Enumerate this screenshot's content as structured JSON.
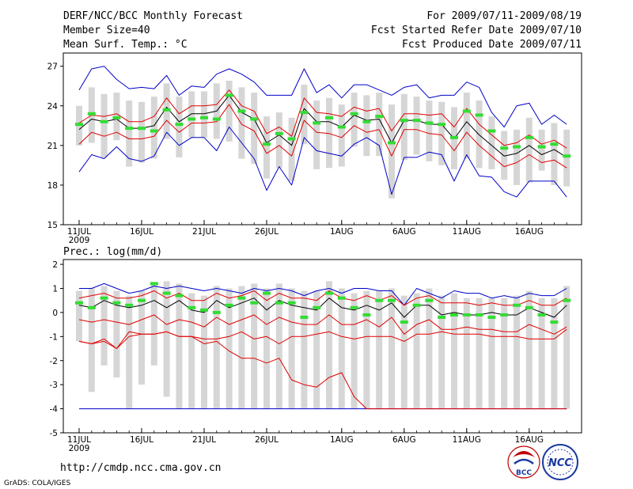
{
  "header": {
    "title": "DERF/NCC/BCC Monthly Forecast",
    "member_size": "Member Size=40",
    "variable": "Mean Surf. Temp.: °C",
    "period": "For 2009/07/11-2009/08/19",
    "started": "Fcst Started Refer Date 2009/07/10",
    "produced": "Fcst Produced Date 2009/07/11"
  },
  "footer": {
    "url": "http://cmdp.ncc.cma.gov.cn",
    "credit": "GrADS: COLA/IGES",
    "logo_bcc": "BCC",
    "logo_ncc": "NCC"
  },
  "colors": {
    "box": "#d6d6d6",
    "mean": "#000000",
    "inner": "#e00000",
    "outer": "#0000c8",
    "obs": "#33dd33"
  },
  "chart_data": [
    {
      "type": "line",
      "title": "Mean Surf. Temp.: °C",
      "xlabel": "",
      "ylabel": "",
      "ylim": [
        15,
        28
      ],
      "yticks": [
        15,
        18,
        21,
        24,
        27
      ],
      "x_ticks": [
        {
          "day": 0,
          "label": "11JUL"
        },
        {
          "day": 5,
          "label": "16JUL"
        },
        {
          "day": 10,
          "label": "21JUL"
        },
        {
          "day": 15,
          "label": "26JUL"
        },
        {
          "day": 21,
          "label": "1AUG"
        },
        {
          "day": 26,
          "label": "6AUG"
        },
        {
          "day": 31,
          "label": "11AUG"
        },
        {
          "day": 36,
          "label": "16AUG"
        }
      ],
      "year_label": "2009",
      "series": [
        {
          "name": "mean",
          "values": [
            22.2,
            23.0,
            22.8,
            23.0,
            22.3,
            22.3,
            22.5,
            23.9,
            22.8,
            23.4,
            23.4,
            23.6,
            24.8,
            23.5,
            23.0,
            21.2,
            21.8,
            21.0,
            23.8,
            22.8,
            22.8,
            22.4,
            23.3,
            22.9,
            23.0,
            21.2,
            22.9,
            22.9,
            22.6,
            22.6,
            21.5,
            22.8,
            21.8,
            21.0,
            20.2,
            20.4,
            21.0,
            20.3,
            20.7,
            20.1
          ]
        },
        {
          "name": "upper_inner",
          "values": [
            22.7,
            23.3,
            23.2,
            23.4,
            22.8,
            22.8,
            23.2,
            24.6,
            23.4,
            24.0,
            24.0,
            24.1,
            25.2,
            24.0,
            23.6,
            21.9,
            22.4,
            21.7,
            24.6,
            23.5,
            23.4,
            23.2,
            23.9,
            23.6,
            23.8,
            22.1,
            23.4,
            23.4,
            23.3,
            23.4,
            22.4,
            23.8,
            22.6,
            21.8,
            21.0,
            21.2,
            21.8,
            21.1,
            21.4,
            20.8
          ]
        },
        {
          "name": "lower_inner",
          "values": [
            21.1,
            22.0,
            21.7,
            22.0,
            21.5,
            21.5,
            21.7,
            22.9,
            22.0,
            22.7,
            22.7,
            22.8,
            24.1,
            22.6,
            22.1,
            20.4,
            21.0,
            20.2,
            22.9,
            22.0,
            21.9,
            21.6,
            22.5,
            22.0,
            22.2,
            20.2,
            22.2,
            22.2,
            21.9,
            21.8,
            20.6,
            22.0,
            21.0,
            20.2,
            19.4,
            19.7,
            20.3,
            19.7,
            19.9,
            19.3
          ]
        },
        {
          "name": "upper_outer",
          "values": [
            25.2,
            26.8,
            27.0,
            26.0,
            25.3,
            25.4,
            25.3,
            26.3,
            24.8,
            25.5,
            25.4,
            26.4,
            26.8,
            26.4,
            25.8,
            24.8,
            24.8,
            24.8,
            26.8,
            25.0,
            25.6,
            24.6,
            25.6,
            25.6,
            25.2,
            24.8,
            25.4,
            25.6,
            24.6,
            24.8,
            24.8,
            25.8,
            25.4,
            23.5,
            22.4,
            24.0,
            24.2,
            22.6,
            23.3,
            22.6
          ]
        },
        {
          "name": "lower_outer",
          "values": [
            19.0,
            20.3,
            20.0,
            20.9,
            20.0,
            19.8,
            20.2,
            22.0,
            21.0,
            21.6,
            21.6,
            20.6,
            22.4,
            21.2,
            20.0,
            17.6,
            19.4,
            18.0,
            21.6,
            20.6,
            20.4,
            20.2,
            21.1,
            21.6,
            21.0,
            17.3,
            20.1,
            20.1,
            20.5,
            20.3,
            18.3,
            20.3,
            18.7,
            18.6,
            17.5,
            17.1,
            18.3,
            18.3,
            18.3,
            17.1
          ]
        },
        {
          "name": "observed",
          "values": [
            22.6,
            23.4,
            22.8,
            23.1,
            22.3,
            22.3,
            22.1,
            23.7,
            22.6,
            23.0,
            23.1,
            23.0,
            24.8,
            23.6,
            23.0,
            21.1,
            21.9,
            21.5,
            23.5,
            22.7,
            23.1,
            22.4,
            23.4,
            22.8,
            23.2,
            21.2,
            22.9,
            22.9,
            22.7,
            22.6,
            21.6,
            23.6,
            23.3,
            22.1,
            20.8,
            20.9,
            21.6,
            20.9,
            21.1,
            20.2
          ]
        },
        {
          "name": "box_top",
          "values": [
            24.0,
            25.4,
            24.9,
            25.0,
            24.4,
            24.3,
            24.7,
            25.7,
            24.7,
            25.1,
            25.1,
            25.7,
            25.9,
            25.4,
            25.0,
            23.2,
            23.5,
            23.1,
            25.6,
            24.4,
            24.6,
            24.1,
            25.0,
            24.8,
            25.0,
            24.1,
            24.9,
            24.7,
            24.4,
            24.3,
            23.9,
            25.0,
            24.4,
            23.2,
            22.1,
            22.2,
            23.1,
            22.2,
            22.7,
            22.2
          ]
        },
        {
          "name": "box_bottom",
          "values": [
            21.0,
            21.2,
            20.1,
            21.4,
            19.4,
            19.7,
            20.0,
            21.5,
            20.1,
            21.6,
            21.6,
            21.5,
            21.3,
            20.0,
            19.6,
            18.5,
            19.3,
            18.3,
            21.1,
            19.2,
            19.3,
            19.4,
            20.9,
            20.2,
            20.2,
            17.0,
            19.9,
            20.3,
            19.8,
            19.5,
            19.2,
            20.0,
            19.3,
            19.2,
            18.4,
            18.0,
            18.2,
            19.1,
            18.0,
            17.9
          ]
        }
      ]
    },
    {
      "type": "line",
      "title": "Prec.: log(mm/d)",
      "xlabel": "",
      "ylabel": "",
      "ylim": [
        -5,
        2.2
      ],
      "yticks": [
        -5,
        -4,
        -3,
        -2,
        -1,
        0,
        1,
        2
      ],
      "x_ticks": [
        {
          "day": 0,
          "label": "11JUL"
        },
        {
          "day": 5,
          "label": "16JUL"
        },
        {
          "day": 10,
          "label": "21JUL"
        },
        {
          "day": 15,
          "label": "26JUL"
        },
        {
          "day": 21,
          "label": "1AUG"
        },
        {
          "day": 26,
          "label": "6AUG"
        },
        {
          "day": 31,
          "label": "11AUG"
        },
        {
          "day": 36,
          "label": "16AUG"
        }
      ],
      "year_label": "2009",
      "series": [
        {
          "name": "mean",
          "values": [
            0.3,
            0.2,
            0.5,
            0.3,
            0.2,
            0.3,
            0.5,
            0.2,
            0.5,
            0.1,
            0.0,
            0.5,
            0.2,
            0.4,
            0.6,
            0.1,
            0.5,
            0.3,
            0.2,
            0.1,
            0.6,
            0.2,
            0.1,
            0.3,
            0.1,
            0.4,
            -0.2,
            0.3,
            0.3,
            -0.1,
            0.0,
            -0.1,
            -0.1,
            0.0,
            -0.1,
            -0.1,
            0.2,
            0.0,
            -0.2,
            0.3
          ]
        },
        {
          "name": "upper_inner",
          "values": [
            0.6,
            0.7,
            0.8,
            0.6,
            0.6,
            0.7,
            0.9,
            0.6,
            0.8,
            0.5,
            0.5,
            0.8,
            0.6,
            0.7,
            0.9,
            0.5,
            0.8,
            0.6,
            0.6,
            0.5,
            0.9,
            0.6,
            0.5,
            0.7,
            0.5,
            0.7,
            0.3,
            0.6,
            0.7,
            0.4,
            0.4,
            0.4,
            0.3,
            0.4,
            0.3,
            0.3,
            0.5,
            0.3,
            0.3,
            0.6
          ]
        },
        {
          "name": "lower_inner",
          "values": [
            -0.3,
            -0.4,
            -0.3,
            -0.4,
            -0.5,
            -0.3,
            -0.1,
            -0.5,
            -0.3,
            -0.4,
            -0.6,
            -0.2,
            -0.5,
            -0.3,
            -0.1,
            -0.5,
            -0.2,
            -0.4,
            -0.5,
            -0.5,
            -0.1,
            -0.5,
            -0.5,
            -0.3,
            -0.6,
            -0.2,
            -0.9,
            -0.5,
            -0.3,
            -0.7,
            -0.7,
            -0.6,
            -0.7,
            -0.7,
            -0.8,
            -0.8,
            -0.5,
            -0.7,
            -0.9,
            -0.6
          ]
        },
        {
          "name": "lower_red",
          "values": [
            -1.2,
            -1.3,
            -1.2,
            -1.5,
            -1.0,
            -0.9,
            -0.9,
            -0.8,
            -1.0,
            -1.0,
            -1.3,
            -1.2,
            -1.6,
            -1.9,
            -1.9,
            -2.1,
            -1.9,
            -2.8,
            -3.0,
            -3.1,
            -2.7,
            -2.5,
            -3.5,
            -4.0,
            -4.0,
            -4.0,
            -4.0,
            -4.0,
            -4.0,
            -4.0,
            -4.0,
            -4.0,
            -4.0,
            -4.0,
            -4.0,
            -4.0,
            -4.0,
            -4.0,
            -4.0,
            -4.0
          ]
        },
        {
          "name": "red_bottom_line",
          "values": [
            -1.2,
            -1.3,
            -1.1,
            -1.5,
            -0.8,
            -0.9,
            -0.9,
            -0.8,
            -1.0,
            -1.0,
            -1.1,
            -1.1,
            -1.0,
            -0.8,
            -1.1,
            -1.0,
            -1.3,
            -1.0,
            -1.0,
            -0.9,
            -0.8,
            -1.0,
            -1.1,
            -1.0,
            -1.0,
            -1.0,
            -1.2,
            -0.9,
            -0.9,
            -0.8,
            -0.9,
            -0.9,
            -0.9,
            -1.0,
            -1.0,
            -1.0,
            -1.1,
            -1.1,
            -1.1,
            -0.7
          ]
        },
        {
          "name": "upper_outer",
          "values": [
            1.0,
            1.0,
            1.2,
            1.0,
            0.8,
            0.9,
            1.1,
            1.0,
            1.1,
            1.0,
            0.9,
            1.0,
            0.9,
            0.8,
            1.0,
            0.9,
            1.0,
            0.9,
            0.7,
            0.9,
            1.0,
            0.8,
            1.0,
            1.0,
            0.9,
            0.9,
            0.3,
            1.0,
            0.8,
            0.6,
            0.9,
            0.8,
            0.8,
            0.6,
            0.7,
            0.6,
            0.8,
            0.7,
            0.7,
            1.0
          ]
        },
        {
          "name": "lower_outer",
          "values": [
            -4.0,
            -4.0,
            -4.0,
            -4.0,
            -4.0,
            -4.0,
            -4.0,
            -4.0,
            -4.0,
            -4.0,
            -4.0,
            -4.0,
            -4.0,
            -4.0,
            -4.0,
            -4.0,
            -4.0,
            -4.0,
            -4.0,
            -4.0,
            -4.0,
            -4.0,
            -4.0,
            -4.0,
            -4.0,
            -4.0,
            -4.0,
            -4.0,
            -4.0,
            -4.0,
            -4.0,
            -4.0,
            -4.0,
            -4.0,
            -4.0,
            -4.0,
            -4.0,
            -4.0,
            -4.0,
            -4.0
          ]
        },
        {
          "name": "observed",
          "values": [
            0.4,
            0.2,
            0.6,
            0.4,
            0.3,
            0.5,
            1.2,
            0.8,
            0.7,
            0.2,
            0.1,
            0.0,
            0.3,
            0.6,
            0.4,
            0.8,
            0.4,
            0.4,
            -0.2,
            0.2,
            0.8,
            0.6,
            0.2,
            -0.1,
            0.5,
            0.5,
            -0.4,
            0.3,
            0.5,
            -0.2,
            -0.1,
            -0.1,
            -0.1,
            -0.2,
            -0.1,
            0.3,
            0.2,
            -0.1,
            -0.4,
            0.5
          ]
        },
        {
          "name": "box_top",
          "values": [
            0.9,
            1.0,
            1.1,
            0.9,
            0.7,
            0.9,
            1.2,
            1.3,
            1.2,
            0.8,
            0.7,
            1.1,
            1.0,
            1.1,
            1.2,
            1.0,
            1.2,
            1.0,
            0.9,
            0.9,
            1.3,
            1.0,
            0.8,
            0.9,
            0.9,
            1.0,
            0.7,
            0.8,
            1.0,
            0.7,
            0.8,
            0.6,
            0.6,
            0.6,
            0.6,
            0.7,
            0.9,
            0.6,
            0.6,
            1.1
          ]
        },
        {
          "name": "box_bottom",
          "values": [
            -1.2,
            -3.3,
            -2.2,
            -2.7,
            -4.0,
            -3.0,
            -2.2,
            -3.5,
            -4.0,
            -4.0,
            -4.0,
            -4.0,
            -4.0,
            -4.0,
            -4.0,
            -4.0,
            -4.0,
            -4.0,
            -4.0,
            -4.0,
            -4.0,
            -4.0,
            -4.0,
            -4.0,
            -4.0,
            -4.0,
            -4.0,
            -4.0,
            -4.0,
            -4.0,
            -4.0,
            -4.0,
            -4.0,
            -4.0,
            -4.0,
            -4.0,
            -4.0,
            -4.0,
            -4.0,
            -4.0
          ]
        }
      ]
    }
  ]
}
